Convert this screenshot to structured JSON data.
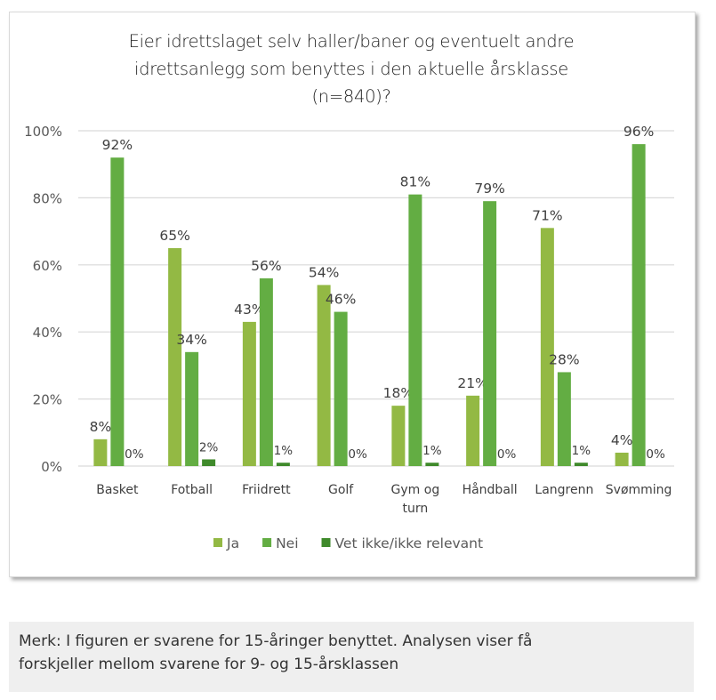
{
  "chart_data": {
    "type": "bar",
    "title_lines": [
      "Eier idrettslaget selv haller/baner og eventuelt andre",
      "idrettsanlegg som benyttes i den aktuelle årsklasse",
      "(n=840)?"
    ],
    "categories": [
      [
        "Basket"
      ],
      [
        "Fotball"
      ],
      [
        "Friidrett"
      ],
      [
        "Golf"
      ],
      [
        "Gym og",
        "turn"
      ],
      [
        "Håndball"
      ],
      [
        "Langrenn"
      ],
      [
        "Svømming"
      ]
    ],
    "series": [
      {
        "name": "Ja",
        "color": "#93b944",
        "values": [
          8,
          65,
          43,
          54,
          18,
          21,
          71,
          4
        ]
      },
      {
        "name": "Nei",
        "color": "#63ad43",
        "values": [
          92,
          34,
          56,
          46,
          81,
          79,
          28,
          96
        ]
      },
      {
        "name": "Vet ikke/ikke relevant",
        "color": "#3f8a2b",
        "values": [
          0,
          2,
          1,
          0,
          1,
          0,
          1,
          0
        ]
      }
    ],
    "yticks": [
      "0%",
      "20%",
      "40%",
      "60%",
      "80%",
      "100%"
    ],
    "ylim": [
      0,
      100
    ],
    "xlabel": "",
    "ylabel": "",
    "grid": true,
    "legend": "bottom"
  },
  "note": {
    "lines": [
      "Merk: I figuren er svarene for 15-åringer benyttet. Analysen viser få",
      "forskjeller mellom svarene for 9- og 15-årsklassen"
    ]
  }
}
